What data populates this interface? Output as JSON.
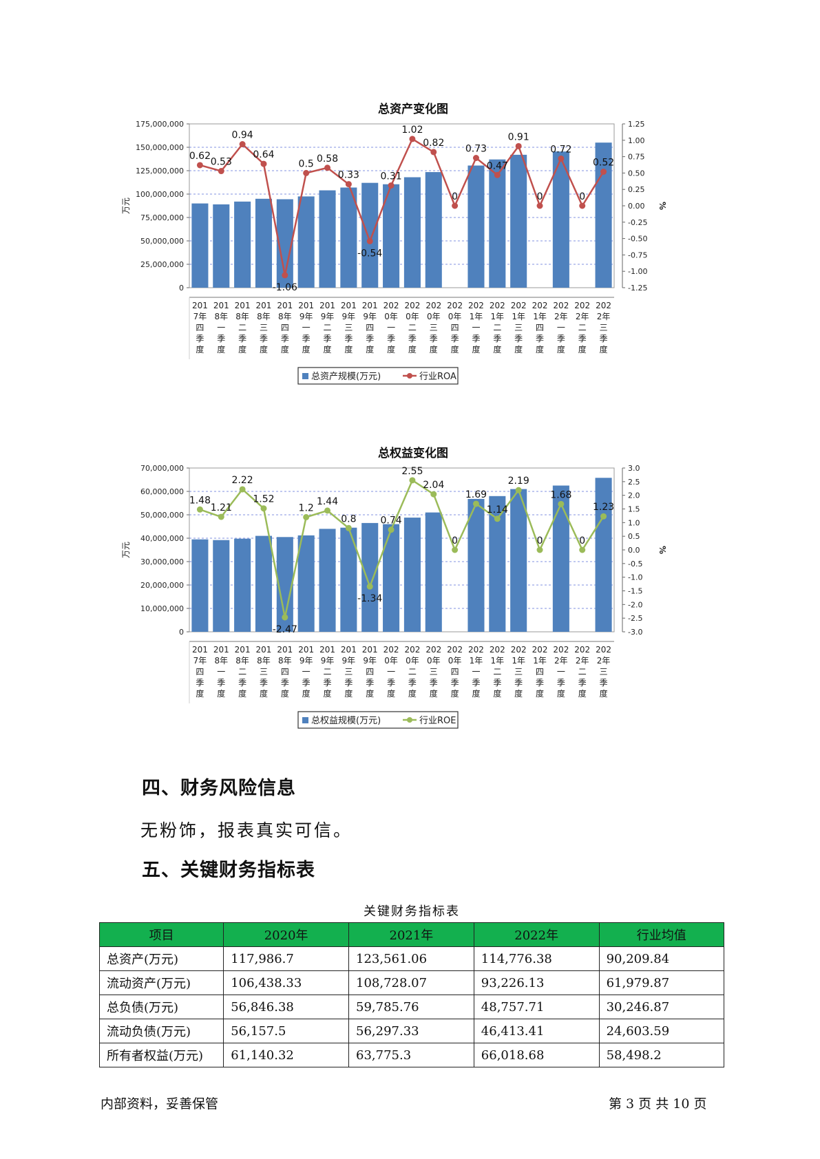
{
  "chart_data": [
    {
      "type": "bar+line",
      "title": "总资产变化图",
      "ylabel_left": "万元",
      "ylabel_right": "%",
      "ylim_left": [
        0,
        175000000
      ],
      "ylim_right": [
        -1.25,
        1.25
      ],
      "left_ticks": [
        "0",
        "25,000,000",
        "50,000,000",
        "75,000,000",
        "100,000,000",
        "125,000,000",
        "150,000,000",
        "175,000,000"
      ],
      "right_ticks": [
        "-1.25",
        "-1.00",
        "-0.75",
        "-0.50",
        "-0.25",
        "0.00",
        "0.25",
        "0.50",
        "0.75",
        "1.00",
        "1.25"
      ],
      "categories": [
        "2017年四季度",
        "2018年一季度",
        "2018年二季度",
        "2018年三季度",
        "2018年四季度",
        "2019年一季度",
        "2019年二季度",
        "2019年三季度",
        "2019年四季度",
        "2020年一季度",
        "2020年二季度",
        "2020年三季度",
        "2020年四季度",
        "2021年一季度",
        "2021年二季度",
        "2021年三季度",
        "2021年四季度",
        "2022年一季度",
        "2022年二季度",
        "2022年三季度"
      ],
      "category_labels": [
        [
          "201",
          "7年",
          "四",
          "季",
          "度"
        ],
        [
          "201",
          "8年",
          "一",
          "季",
          "度"
        ],
        [
          "201",
          "8年",
          "二",
          "季",
          "度"
        ],
        [
          "201",
          "8年",
          "三",
          "季",
          "度"
        ],
        [
          "201",
          "8年",
          "四",
          "季",
          "度"
        ],
        [
          "201",
          "9年",
          "一",
          "季",
          "度"
        ],
        [
          "201",
          "9年",
          "二",
          "季",
          "度"
        ],
        [
          "201",
          "9年",
          "三",
          "季",
          "度"
        ],
        [
          "201",
          "9年",
          "四",
          "季",
          "度"
        ],
        [
          "202",
          "0年",
          "一",
          "季",
          "度"
        ],
        [
          "202",
          "0年",
          "二",
          "季",
          "度"
        ],
        [
          "202",
          "0年",
          "三",
          "季",
          "度"
        ],
        [
          "202",
          "0年",
          "四",
          "季",
          "度"
        ],
        [
          "202",
          "1年",
          "一",
          "季",
          "度"
        ],
        [
          "202",
          "1年",
          "二",
          "季",
          "度"
        ],
        [
          "202",
          "1年",
          "三",
          "季",
          "度"
        ],
        [
          "202",
          "1年",
          "四",
          "季",
          "度"
        ],
        [
          "202",
          "2年",
          "一",
          "季",
          "度"
        ],
        [
          "202",
          "2年",
          "二",
          "季",
          "度"
        ],
        [
          "202",
          "2年",
          "三",
          "季",
          "度"
        ]
      ],
      "bar_series": {
        "name": "总资产规模(万元)",
        "color": "#4f81bd",
        "values": [
          90000000,
          89000000,
          92000000,
          95000000,
          94500000,
          97500000,
          104000000,
          107000000,
          112000000,
          110500000,
          118000000,
          123500000,
          null,
          130500000,
          137000000,
          142000000,
          null,
          145500000,
          null,
          155000000
        ]
      },
      "line_series": {
        "name": "行业ROA",
        "color": "#c0504d",
        "values": [
          0.62,
          0.53,
          0.94,
          0.64,
          -1.06,
          0.5,
          0.58,
          0.33,
          -0.54,
          0.31,
          1.02,
          0.82,
          0,
          0.73,
          0.47,
          0.91,
          0,
          0.72,
          0,
          0.52
        ],
        "labels": [
          "0.62",
          "0.53",
          "0.94",
          "0.64",
          "-1.06",
          "0.5",
          "0.58",
          "0.33",
          "-0.54",
          "0.31",
          "1.02",
          "0.82",
          "0",
          "0.73",
          "0.47",
          "0.91",
          "0",
          "0.72",
          "0",
          "0.52"
        ]
      },
      "legend_position": "bottom",
      "grid": true
    },
    {
      "type": "bar+line",
      "title": "总权益变化图",
      "ylabel_left": "万元",
      "ylabel_right": "%",
      "ylim_left": [
        0,
        70000000
      ],
      "ylim_right": [
        -3.0,
        3.0
      ],
      "left_ticks": [
        "0",
        "10,000,000",
        "20,000,000",
        "30,000,000",
        "40,000,000",
        "50,000,000",
        "60,000,000",
        "70,000,000"
      ],
      "right_ticks": [
        "-3.0",
        "-2.5",
        "-2.0",
        "-1.5",
        "-1.0",
        "-0.5",
        "0.0",
        "0.5",
        "1.0",
        "1.5",
        "2.0",
        "2.5",
        "3.0"
      ],
      "categories": [
        "2017年四季度",
        "2018年一季度",
        "2018年二季度",
        "2018年三季度",
        "2018年四季度",
        "2019年一季度",
        "2019年二季度",
        "2019年三季度",
        "2019年四季度",
        "2020年一季度",
        "2020年二季度",
        "2020年三季度",
        "2020年四季度",
        "2021年一季度",
        "2021年二季度",
        "2021年三季度",
        "2021年四季度",
        "2022年一季度",
        "2022年二季度",
        "2022年三季度"
      ],
      "category_labels": [
        [
          "201",
          "7年",
          "四",
          "季",
          "度"
        ],
        [
          "201",
          "8年",
          "一",
          "季",
          "度"
        ],
        [
          "201",
          "8年",
          "二",
          "季",
          "度"
        ],
        [
          "201",
          "8年",
          "三",
          "季",
          "度"
        ],
        [
          "201",
          "8年",
          "四",
          "季",
          "度"
        ],
        [
          "201",
          "9年",
          "一",
          "季",
          "度"
        ],
        [
          "201",
          "9年",
          "二",
          "季",
          "度"
        ],
        [
          "201",
          "9年",
          "三",
          "季",
          "度"
        ],
        [
          "201",
          "9年",
          "四",
          "季",
          "度"
        ],
        [
          "202",
          "0年",
          "一",
          "季",
          "度"
        ],
        [
          "202",
          "0年",
          "二",
          "季",
          "度"
        ],
        [
          "202",
          "0年",
          "三",
          "季",
          "度"
        ],
        [
          "202",
          "0年",
          "四",
          "季",
          "度"
        ],
        [
          "202",
          "1年",
          "一",
          "季",
          "度"
        ],
        [
          "202",
          "1年",
          "二",
          "季",
          "度"
        ],
        [
          "202",
          "1年",
          "三",
          "季",
          "度"
        ],
        [
          "202",
          "1年",
          "四",
          "季",
          "度"
        ],
        [
          "202",
          "2年",
          "一",
          "季",
          "度"
        ],
        [
          "202",
          "2年",
          "二",
          "季",
          "度"
        ],
        [
          "202",
          "2年",
          "三",
          "季",
          "度"
        ]
      ],
      "bar_series": {
        "name": "总权益规模(万元)",
        "color": "#4f81bd",
        "values": [
          39500000,
          39200000,
          39800000,
          41000000,
          40500000,
          41200000,
          44000000,
          44500000,
          46500000,
          46000000,
          48800000,
          51000000,
          null,
          56800000,
          58000000,
          61000000,
          null,
          62500000,
          null,
          65800000
        ]
      },
      "line_series": {
        "name": "行业ROE",
        "color": "#9bbb59",
        "values": [
          1.48,
          1.21,
          2.22,
          1.52,
          -2.47,
          1.2,
          1.44,
          0.8,
          -1.34,
          0.74,
          2.55,
          2.04,
          0,
          1.69,
          1.14,
          2.19,
          0,
          1.68,
          0,
          1.23
        ],
        "labels": [
          "1.48",
          "1.21",
          "2.22",
          "1.52",
          "-2.47",
          "1.2",
          "1.44",
          "0.8",
          "-1.34",
          "0.74",
          "2.55",
          "2.04",
          "0",
          "1.69",
          "1.14",
          "2.19",
          "0",
          "1.68",
          "0",
          "1.23"
        ]
      },
      "legend_position": "bottom",
      "grid": true
    }
  ],
  "sections": {
    "risk_heading": "四、财务风险信息",
    "risk_text": "无粉饰，报表真实可信。",
    "kpi_heading": "五、关键财务指标表"
  },
  "table": {
    "caption": "关键财务指标表",
    "header_color": "#13b04f",
    "columns": [
      "项目",
      "2020年",
      "2021年",
      "2022年",
      "行业均值"
    ],
    "rows": [
      [
        "总资产(万元)",
        "117,986.7",
        "123,561.06",
        "114,776.38",
        "90,209.84"
      ],
      [
        "流动资产(万元)",
        "106,438.33",
        "108,728.07",
        "93,226.13",
        "61,979.87"
      ],
      [
        "总负债(万元)",
        "56,846.38",
        "59,785.76",
        "48,757.71",
        "30,246.87"
      ],
      [
        "流动负债(万元)",
        "56,157.5",
        "56,297.33",
        "46,413.41",
        "24,603.59"
      ],
      [
        "所有者权益(万元)",
        "61,140.32",
        "63,775.3",
        "66,018.68",
        "58,498.2"
      ]
    ]
  },
  "footer": {
    "left": "内部资料，妥善保管",
    "right": "第 3 页  共 10 页"
  }
}
